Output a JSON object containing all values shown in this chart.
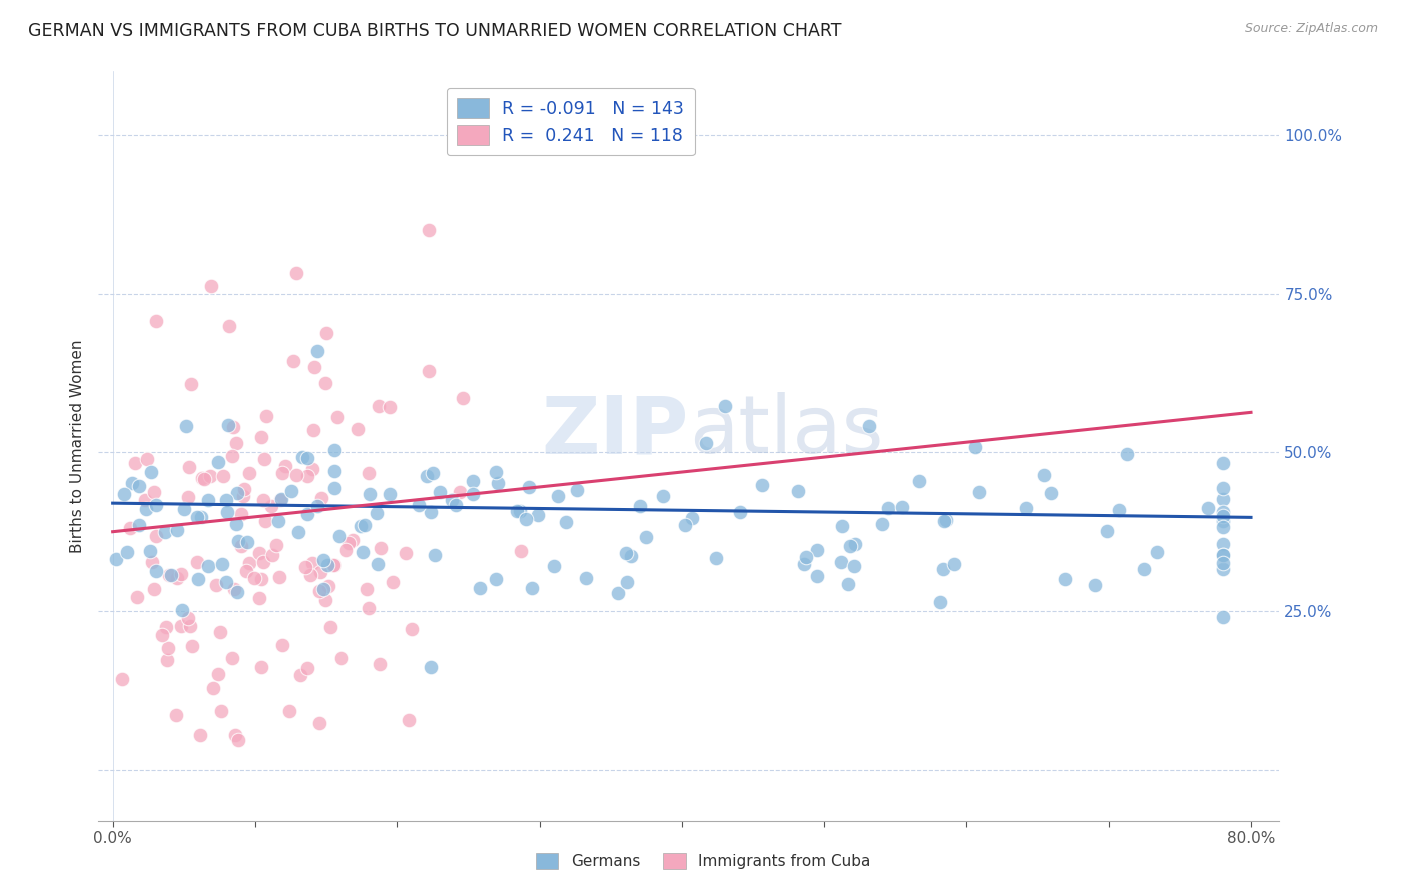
{
  "title": "GERMAN VS IMMIGRANTS FROM CUBA BIRTHS TO UNMARRIED WOMEN CORRELATION CHART",
  "source": "Source: ZipAtlas.com",
  "ylabel": "Births to Unmarried Women",
  "ytick_labels": [
    "",
    "25.0%",
    "50.0%",
    "75.0%",
    "100.0%"
  ],
  "ytick_values": [
    0.0,
    0.25,
    0.5,
    0.75,
    1.0
  ],
  "xlim": [
    -0.01,
    0.82
  ],
  "ylim": [
    -0.08,
    1.1
  ],
  "german_color": "#89b8db",
  "cuba_color": "#f4a8be",
  "german_line_color": "#2255aa",
  "cuba_line_color": "#d94070",
  "german_N": 143,
  "cuba_N": 118,
  "german_seed": 42,
  "cuba_seed": 77,
  "background_color": "#ffffff",
  "grid_color": "#c8d4e8",
  "title_fontsize": 12.5,
  "axis_label_fontsize": 11,
  "tick_fontsize": 11,
  "watermark": "ZIPatlas",
  "legend_label_g": "R = -0.091   N = 143",
  "legend_label_c": "R =  0.241   N = 118"
}
